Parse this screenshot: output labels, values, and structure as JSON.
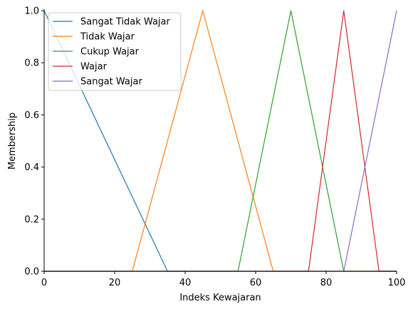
{
  "chart_data": {
    "type": "line",
    "title": "",
    "xlabel": "Indeks Kewajaran",
    "ylabel": "Membership",
    "xlim": [
      0,
      100
    ],
    "ylim": [
      0,
      1
    ],
    "xticks": [
      0,
      20,
      40,
      60,
      80,
      100
    ],
    "yticks": [
      0.0,
      0.2,
      0.4,
      0.6,
      0.8,
      1.0
    ],
    "xtick_labels": [
      "0",
      "20",
      "40",
      "60",
      "80",
      "100"
    ],
    "ytick_labels": [
      "0.0",
      "0.2",
      "0.4",
      "0.6",
      "0.8",
      "1.0"
    ],
    "grid": false,
    "legend_position": "top-left",
    "series": [
      {
        "name": "Sangat Tidak Wajar",
        "color": "#1f77b4",
        "x": [
          0,
          35,
          100
        ],
        "y": [
          1,
          0,
          0
        ]
      },
      {
        "name": "Tidak Wajar",
        "color": "#ff7f0e",
        "x": [
          0,
          25,
          45,
          65,
          100
        ],
        "y": [
          0,
          0,
          1,
          0,
          0
        ]
      },
      {
        "name": "Cukup Wajar",
        "color": "#2ca02c",
        "x": [
          0,
          55,
          70,
          85,
          100
        ],
        "y": [
          0,
          0,
          1,
          0,
          0
        ]
      },
      {
        "name": "Wajar",
        "color": "#d62728",
        "x": [
          0,
          75,
          85,
          95,
          100
        ],
        "y": [
          0,
          0,
          1,
          0,
          0
        ]
      },
      {
        "name": "Sangat Wajar",
        "color": "#9467bd",
        "x": [
          0,
          85,
          100
        ],
        "y": [
          0,
          0,
          1
        ]
      }
    ]
  }
}
